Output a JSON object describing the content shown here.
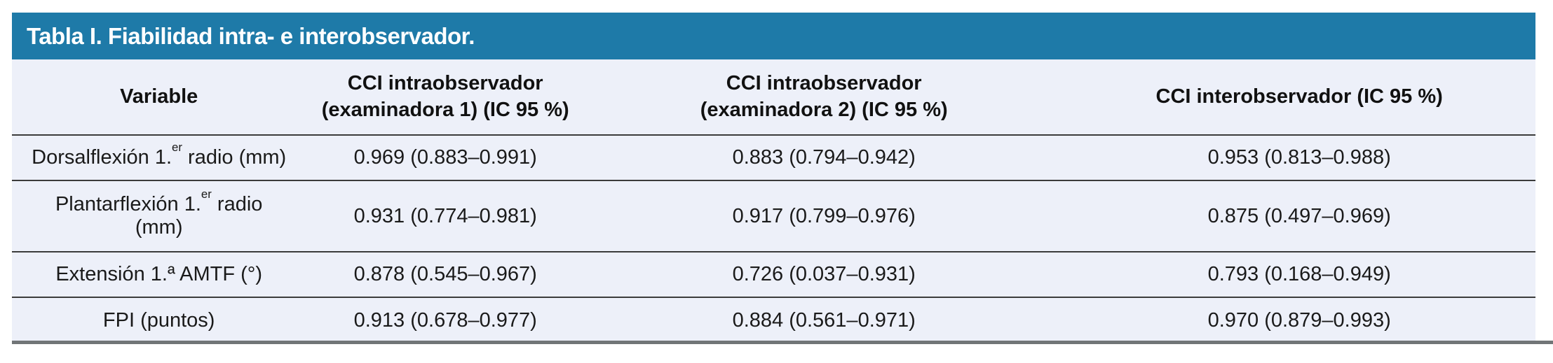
{
  "colors": {
    "title_bar": "#1e7aa8",
    "title_text": "#ffffff",
    "row_background": "#edf0f9",
    "row_divider": "#3b3b3b",
    "bottom_rule": "#717577",
    "body_text": "#1a1a1a"
  },
  "table": {
    "title": "Tabla I. Fiabilidad intra- e interobservador.",
    "columns": [
      {
        "line1": "Variable",
        "line2": ""
      },
      {
        "line1": "CCI intraobservador",
        "line2": "(examinadora 1) (IC 95 %)"
      },
      {
        "line1": "CCI intraobservador",
        "line2": "(examinadora 2) (IC 95 %)"
      },
      {
        "line1": "CCI interobservador (IC 95 %)",
        "line2": ""
      }
    ],
    "rows": [
      {
        "variable": {
          "pre": "Dorsalflexión 1.",
          "sup": "er",
          "post": " radio (mm)",
          "line2": ""
        },
        "values": [
          "0.969 (0.883–0.991)",
          "0.883 (0.794–0.942)",
          "0.953 (0.813–0.988)"
        ]
      },
      {
        "variable": {
          "pre": "Plantarflexión 1.",
          "sup": "er",
          "post": " radio",
          "line2": "(mm)"
        },
        "values": [
          "0.931 (0.774–0.981)",
          "0.917 (0.799–0.976)",
          "0.875 (0.497–0.969)"
        ]
      },
      {
        "variable": {
          "pre": "Extensión 1.ª AMTF (°)",
          "sup": "",
          "post": "",
          "line2": ""
        },
        "values": [
          "0.878 (0.545–0.967)",
          "0.726 (0.037–0.931)",
          "0.793 (0.168–0.949)"
        ]
      },
      {
        "variable": {
          "pre": "FPI (puntos)",
          "sup": "",
          "post": "",
          "line2": ""
        },
        "values": [
          "0.913 (0.678–0.977)",
          "0.884 (0.561–0.971)",
          "0.970 (0.879–0.993)"
        ]
      }
    ]
  }
}
